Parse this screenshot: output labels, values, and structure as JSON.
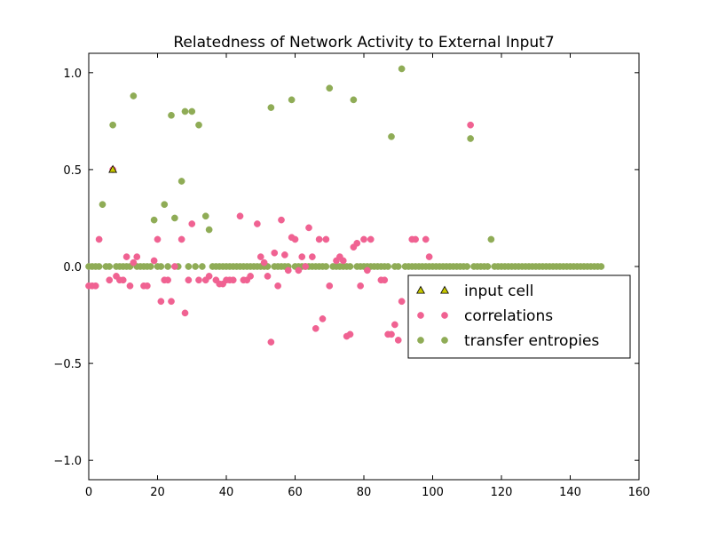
{
  "chart_data": {
    "type": "scatter",
    "title": "Relatedness of Network Activity to External Input7",
    "xlabel": "",
    "ylabel": "",
    "xlim": [
      0,
      160
    ],
    "ylim": [
      -1.1,
      1.1
    ],
    "xticks": [
      0,
      20,
      40,
      60,
      80,
      100,
      120,
      140,
      160
    ],
    "yticks": [
      -1.0,
      -0.5,
      0.0,
      0.5,
      1.0
    ],
    "ytick_labels": [
      "−1.0",
      "−0.5",
      "0.0",
      "0.5",
      "1.0"
    ],
    "grid": false,
    "legend_position": "center-right",
    "series": [
      {
        "name": "input cell",
        "marker": "triangle",
        "color": "#c8c800",
        "points": [
          [
            7,
            0.5
          ]
        ]
      },
      {
        "name": "correlations",
        "marker": "circle",
        "color": "#f06292",
        "points": [
          [
            0,
            -0.1
          ],
          [
            1,
            -0.1
          ],
          [
            2,
            -0.1
          ],
          [
            3,
            0.14
          ],
          [
            6,
            -0.07
          ],
          [
            7,
            0.5
          ],
          [
            8,
            -0.05
          ],
          [
            9,
            -0.07
          ],
          [
            10,
            -0.07
          ],
          [
            11,
            0.05
          ],
          [
            12,
            -0.1
          ],
          [
            13,
            0.02
          ],
          [
            14,
            0.05
          ],
          [
            16,
            -0.1
          ],
          [
            17,
            -0.1
          ],
          [
            19,
            0.03
          ],
          [
            20,
            0.14
          ],
          [
            21,
            -0.18
          ],
          [
            22,
            -0.07
          ],
          [
            23,
            -0.07
          ],
          [
            24,
            -0.18
          ],
          [
            25,
            0
          ],
          [
            27,
            0.14
          ],
          [
            28,
            -0.24
          ],
          [
            29,
            -0.07
          ],
          [
            30,
            0.22
          ],
          [
            32,
            -0.07
          ],
          [
            34,
            -0.07
          ],
          [
            35,
            -0.05
          ],
          [
            37,
            -0.07
          ],
          [
            38,
            -0.09
          ],
          [
            39,
            -0.09
          ],
          [
            40,
            -0.07
          ],
          [
            41,
            -0.07
          ],
          [
            42,
            -0.07
          ],
          [
            44,
            0.26
          ],
          [
            45,
            -0.07
          ],
          [
            46,
            -0.07
          ],
          [
            47,
            -0.05
          ],
          [
            49,
            0.22
          ],
          [
            50,
            0.05
          ],
          [
            51,
            0.02
          ],
          [
            52,
            -0.05
          ],
          [
            53,
            -0.39
          ],
          [
            54,
            0.07
          ],
          [
            55,
            -0.1
          ],
          [
            56,
            0.24
          ],
          [
            57,
            0.06
          ],
          [
            58,
            -0.02
          ],
          [
            59,
            0.15
          ],
          [
            60,
            0.14
          ],
          [
            61,
            -0.02
          ],
          [
            62,
            0.05
          ],
          [
            63,
            0
          ],
          [
            64,
            0.2
          ],
          [
            65,
            0.05
          ],
          [
            66,
            -0.32
          ],
          [
            67,
            0.14
          ],
          [
            68,
            -0.27
          ],
          [
            69,
            0.14
          ],
          [
            70,
            -0.1
          ],
          [
            72,
            0.03
          ],
          [
            73,
            0.05
          ],
          [
            74,
            0.03
          ],
          [
            75,
            -0.36
          ],
          [
            76,
            -0.35
          ],
          [
            77,
            0.1
          ],
          [
            78,
            0.12
          ],
          [
            79,
            -0.1
          ],
          [
            80,
            0.14
          ],
          [
            81,
            -0.02
          ],
          [
            82,
            0.14
          ],
          [
            85,
            -0.07
          ],
          [
            86,
            -0.07
          ],
          [
            87,
            -0.35
          ],
          [
            88,
            -0.35
          ],
          [
            89,
            -0.3
          ],
          [
            90,
            -0.38
          ],
          [
            91,
            -0.18
          ],
          [
            94,
            0.14
          ],
          [
            95,
            0.14
          ],
          [
            98,
            0.14
          ],
          [
            99,
            0.05
          ],
          [
            111,
            0.73
          ]
        ]
      },
      {
        "name": "transfer entropies",
        "marker": "circle",
        "color": "#8fac56",
        "points": [
          [
            0,
            0
          ],
          [
            1,
            0
          ],
          [
            2,
            0
          ],
          [
            3,
            0
          ],
          [
            4,
            0.32
          ],
          [
            5,
            0
          ],
          [
            6,
            0
          ],
          [
            7,
            0.73
          ],
          [
            8,
            0
          ],
          [
            9,
            0
          ],
          [
            10,
            0
          ],
          [
            11,
            0
          ],
          [
            12,
            0
          ],
          [
            13,
            0.88
          ],
          [
            14,
            0
          ],
          [
            15,
            0
          ],
          [
            16,
            0
          ],
          [
            17,
            0
          ],
          [
            18,
            0
          ],
          [
            19,
            0.24
          ],
          [
            20,
            0
          ],
          [
            21,
            0
          ],
          [
            22,
            0.32
          ],
          [
            23,
            0
          ],
          [
            24,
            0.78
          ],
          [
            25,
            0.25
          ],
          [
            26,
            0
          ],
          [
            27,
            0.44
          ],
          [
            28,
            0.8
          ],
          [
            29,
            0
          ],
          [
            30,
            0.8
          ],
          [
            31,
            0
          ],
          [
            32,
            0.73
          ],
          [
            33,
            0
          ],
          [
            34,
            0.26
          ],
          [
            35,
            0.19
          ],
          [
            36,
            0
          ],
          [
            37,
            0
          ],
          [
            38,
            0
          ],
          [
            39,
            0
          ],
          [
            40,
            0
          ],
          [
            41,
            0
          ],
          [
            42,
            0
          ],
          [
            43,
            0
          ],
          [
            44,
            0
          ],
          [
            45,
            0
          ],
          [
            46,
            0
          ],
          [
            47,
            0
          ],
          [
            48,
            0
          ],
          [
            49,
            0
          ],
          [
            50,
            0
          ],
          [
            51,
            0
          ],
          [
            52,
            0
          ],
          [
            53,
            0.82
          ],
          [
            54,
            0
          ],
          [
            55,
            0
          ],
          [
            56,
            0
          ],
          [
            57,
            0
          ],
          [
            58,
            0
          ],
          [
            59,
            0.86
          ],
          [
            60,
            0
          ],
          [
            61,
            0
          ],
          [
            62,
            0
          ],
          [
            63,
            0
          ],
          [
            64,
            0
          ],
          [
            65,
            0
          ],
          [
            66,
            0
          ],
          [
            67,
            0
          ],
          [
            68,
            0
          ],
          [
            69,
            0
          ],
          [
            70,
            0.92
          ],
          [
            71,
            0
          ],
          [
            72,
            0
          ],
          [
            73,
            0
          ],
          [
            74,
            0
          ],
          [
            75,
            0
          ],
          [
            76,
            0
          ],
          [
            77,
            0.86
          ],
          [
            78,
            0
          ],
          [
            79,
            0
          ],
          [
            80,
            0
          ],
          [
            81,
            0
          ],
          [
            82,
            0
          ],
          [
            83,
            0
          ],
          [
            84,
            0
          ],
          [
            85,
            0
          ],
          [
            86,
            0
          ],
          [
            87,
            0
          ],
          [
            88,
            0.67
          ],
          [
            89,
            0
          ],
          [
            90,
            0
          ],
          [
            91,
            1.02
          ],
          [
            92,
            0
          ],
          [
            93,
            0
          ],
          [
            94,
            0
          ],
          [
            95,
            0
          ],
          [
            96,
            0
          ],
          [
            97,
            0
          ],
          [
            98,
            0
          ],
          [
            99,
            0
          ],
          [
            100,
            0
          ],
          [
            101,
            0
          ],
          [
            102,
            0
          ],
          [
            103,
            0
          ],
          [
            104,
            0
          ],
          [
            105,
            0
          ],
          [
            106,
            0
          ],
          [
            107,
            0
          ],
          [
            108,
            0
          ],
          [
            109,
            0
          ],
          [
            110,
            0
          ],
          [
            111,
            0.66
          ],
          [
            112,
            0
          ],
          [
            113,
            0
          ],
          [
            114,
            0
          ],
          [
            115,
            0
          ],
          [
            116,
            0
          ],
          [
            117,
            0.14
          ],
          [
            118,
            0
          ],
          [
            119,
            0
          ],
          [
            120,
            0
          ],
          [
            121,
            0
          ],
          [
            122,
            0
          ],
          [
            123,
            0
          ],
          [
            124,
            0
          ],
          [
            125,
            0
          ],
          [
            126,
            0
          ],
          [
            127,
            0
          ],
          [
            128,
            0
          ],
          [
            129,
            0
          ],
          [
            130,
            0
          ],
          [
            131,
            0
          ],
          [
            132,
            0
          ],
          [
            133,
            0
          ],
          [
            134,
            0
          ],
          [
            135,
            0
          ],
          [
            136,
            0
          ],
          [
            137,
            0
          ],
          [
            138,
            0
          ],
          [
            139,
            0
          ],
          [
            140,
            0
          ],
          [
            141,
            0
          ],
          [
            142,
            0
          ],
          [
            143,
            0
          ],
          [
            144,
            0
          ],
          [
            145,
            0
          ],
          [
            146,
            0
          ],
          [
            147,
            0
          ],
          [
            148,
            0
          ],
          [
            149,
            0
          ]
        ]
      }
    ]
  }
}
